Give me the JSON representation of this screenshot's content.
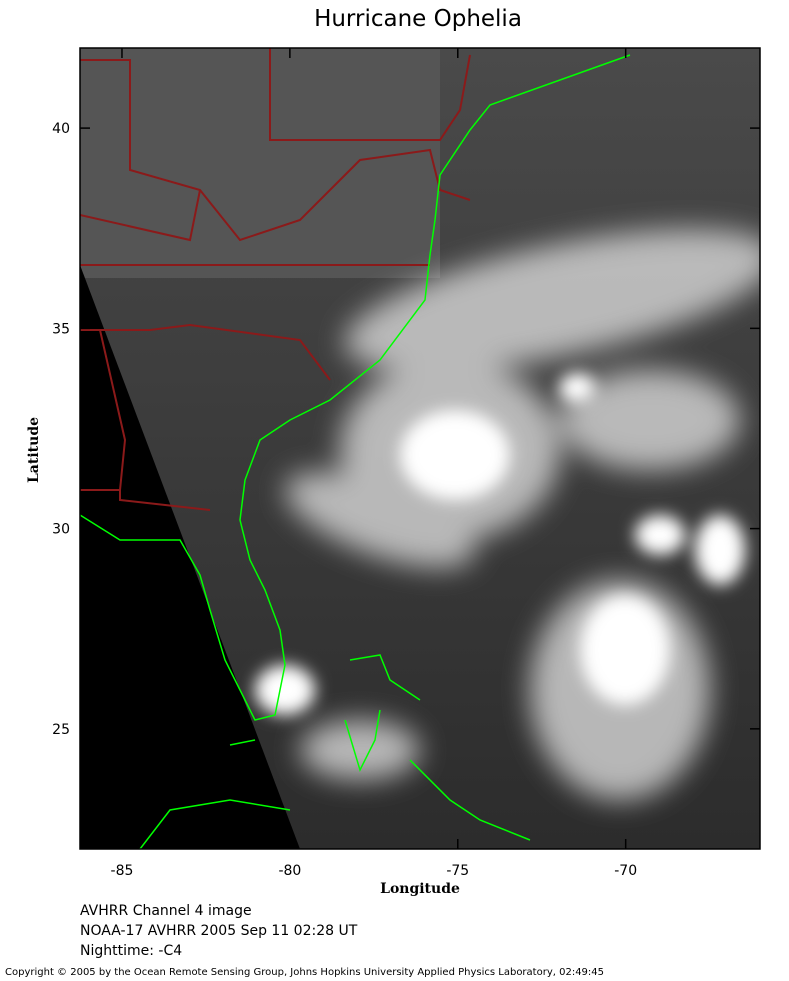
{
  "map": {
    "title": "Hurricane Ophelia",
    "x_label": "Longitude",
    "y_label": "Latitude",
    "xlim": [
      -86.25,
      -66.0
    ],
    "ylim": [
      22.0,
      42.0
    ],
    "xticks": [
      -85,
      -80,
      -75,
      -70
    ],
    "yticks": [
      25,
      30,
      35,
      40
    ],
    "notes": [
      "AVHRR Channel 4 image",
      "NOAA-17 AVHRR 2005 Sep 11 02:28 UT",
      "Nighttime: -C4"
    ],
    "copyright": "Copyright © 2005 by the Ocean Remote Sensing Group, Johns Hopkins University Applied Physics Laboratory, 02:49:45"
  }
}
